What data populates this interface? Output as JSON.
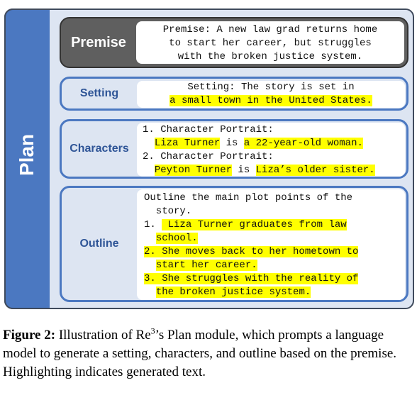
{
  "plan": {
    "label": "Plan"
  },
  "premise": {
    "label": "Premise",
    "lines": [
      "Premise: A new law grad returns home",
      "to start her career, but struggles",
      "with the broken justice system."
    ]
  },
  "setting": {
    "label": "Setting",
    "line1": "Setting: The story is set in",
    "line2": "a small town in the United States."
  },
  "characters": {
    "label": "Characters",
    "item1_head": "1. Character Portrait:",
    "item1_name": "Liza Turner",
    "item1_is": " is ",
    "item1_desc": "a 22-year-old woman.",
    "item2_head": "2. Character Portrait:",
    "item2_name": "Peyton Turner",
    "item2_is": " is ",
    "item2_desc": "Liza’s older sister."
  },
  "outline": {
    "label": "Outline",
    "intro1": "Outline the main plot points of the",
    "intro2": "  story.",
    "p1_num": "1. ",
    "p1_a": " Liza Turner graduates from law",
    "p1_b": "school.",
    "p2_a": "2. She moves back to her hometown to",
    "p2_b": "start her career.",
    "p3_a": "3. She struggles with the reality of",
    "p3_b": "the broken justice system."
  },
  "caption": {
    "fig": "Figure 2:",
    "text1": " Illustration of Re",
    "sup": "3",
    "text2": "’s Plan module, which prompts a language model to generate a setting, characters, and outline based on the premise. Highlighting indicates generated text."
  }
}
